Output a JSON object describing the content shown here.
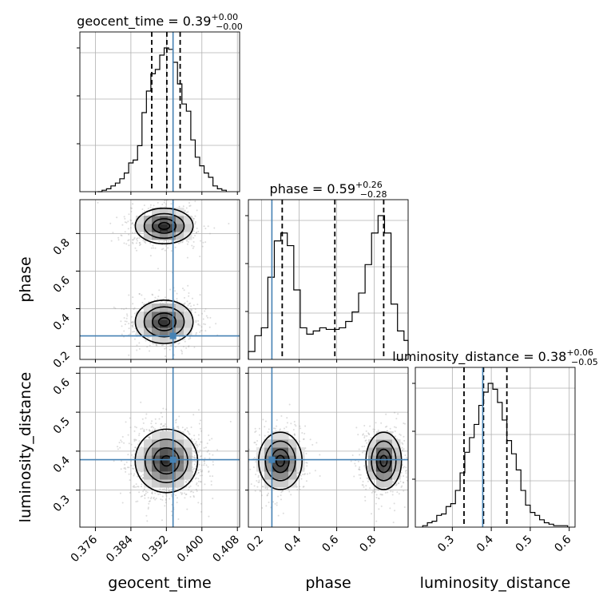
{
  "chart_data": {
    "type": "corner",
    "parameters": [
      "geocent_time",
      "phase",
      "luminosity_distance"
    ],
    "truth": {
      "geocent_time": 0.3935,
      "phase": 0.255,
      "luminosity_distance": 0.378
    },
    "titles": {
      "geocent_time": {
        "name": "geocent_time",
        "median": "0.39",
        "plus": "+0.00",
        "minus": "−0.00"
      },
      "phase": {
        "name": "phase",
        "median": "0.59",
        "plus": "+0.26",
        "minus": "−0.28"
      },
      "luminosity_distance": {
        "name": "luminosity_distance",
        "median": "0.38",
        "plus": "+0.06",
        "minus": "−0.05"
      }
    },
    "axes": {
      "geocent_time": {
        "range": [
          0.3725,
          0.4085
        ],
        "ticks": [
          "0.376",
          "0.384",
          "0.392",
          "0.400",
          "0.408"
        ],
        "tick_values": [
          0.376,
          0.384,
          0.392,
          0.4,
          0.408
        ],
        "label": "geocent_time"
      },
      "phase": {
        "range": [
          0.13,
          0.98
        ],
        "ticks": [
          "0.2",
          "0.4",
          "0.6",
          "0.8"
        ],
        "tick_values": [
          0.2,
          0.4,
          0.6,
          0.8
        ],
        "label": "phase"
      },
      "luminosity_distance": {
        "range": [
          0.205,
          0.615
        ],
        "ticks": [
          "0.3",
          "0.4",
          "0.5",
          "0.6"
        ],
        "tick_values": [
          0.3,
          0.4,
          0.5,
          0.6
        ],
        "label": "luminosity_distance"
      }
    },
    "quantiles": {
      "geocent_time": [
        0.3887,
        0.3921,
        0.3951
      ],
      "phase": [
        0.31,
        0.59,
        0.85
      ],
      "luminosity_distance": [
        0.33,
        0.38,
        0.44
      ]
    },
    "histograms": {
      "geocent_time": {
        "edges": [
          0.3765,
          0.3775,
          0.3785,
          0.3795,
          0.3805,
          0.3815,
          0.3825,
          0.3835,
          0.3845,
          0.3855,
          0.3865,
          0.3875,
          0.3885,
          0.3895,
          0.3905,
          0.3915,
          0.3925,
          0.3935,
          0.3945,
          0.3955,
          0.3965,
          0.3975,
          0.3985,
          0.3995,
          0.4005,
          0.4015,
          0.4025,
          0.4035,
          0.4045,
          0.4055
        ],
        "counts": [
          0,
          1,
          2,
          4,
          6,
          9,
          13,
          20,
          22,
          32,
          55,
          70,
          82,
          85,
          95,
          100,
          99,
          90,
          75,
          61,
          56,
          36,
          24,
          18,
          13,
          10,
          4,
          2,
          1
        ]
      },
      "phase": {
        "edges": [
          0.13,
          0.1645,
          0.199,
          0.2335,
          0.268,
          0.3025,
          0.337,
          0.3715,
          0.406,
          0.4405,
          0.475,
          0.5095,
          0.544,
          0.5785,
          0.613,
          0.6475,
          0.682,
          0.7165,
          0.751,
          0.7855,
          0.82,
          0.8545,
          0.889,
          0.9235,
          0.958,
          0.98
        ],
        "counts": [
          5,
          15,
          20,
          52,
          75,
          80,
          72,
          44,
          20,
          16,
          18,
          20,
          19,
          19,
          20,
          24,
          30,
          42,
          60,
          80,
          91,
          80,
          35,
          18,
          12
        ]
      },
      "luminosity_distance": {
        "edges": [
          0.224,
          0.236,
          0.248,
          0.26,
          0.272,
          0.284,
          0.296,
          0.308,
          0.32,
          0.332,
          0.344,
          0.356,
          0.368,
          0.38,
          0.392,
          0.404,
          0.416,
          0.428,
          0.44,
          0.452,
          0.464,
          0.476,
          0.488,
          0.5,
          0.512,
          0.524,
          0.536,
          0.548,
          0.56,
          0.572,
          0.584,
          0.596
        ],
        "counts": [
          1,
          3,
          4,
          8,
          9,
          14,
          16,
          25,
          37,
          51,
          61,
          70,
          83,
          92,
          98,
          94,
          85,
          73,
          59,
          50,
          39,
          25,
          15,
          10,
          8,
          5,
          3,
          2,
          1,
          1,
          1
        ]
      }
    },
    "pairs": [
      {
        "x": "geocent_time",
        "y": "phase",
        "modes": [
          {
            "cx": 0.3915,
            "cy": 0.84,
            "sx": 0.0031,
            "sy": 0.045,
            "w": 1.0
          },
          {
            "cx": 0.3915,
            "cy": 0.33,
            "sx": 0.0031,
            "sy": 0.055,
            "w": 0.95
          }
        ]
      },
      {
        "x": "geocent_time",
        "y": "luminosity_distance",
        "modes": [
          {
            "cx": 0.392,
            "cy": 0.375,
            "sx": 0.0032,
            "sy": 0.037,
            "w": 1.0
          }
        ]
      },
      {
        "x": "phase",
        "y": "luminosity_distance",
        "modes": [
          {
            "cx": 0.3,
            "cy": 0.375,
            "sx": 0.055,
            "sy": 0.035,
            "w": 1.0
          },
          {
            "cx": 0.85,
            "cy": 0.375,
            "sx": 0.045,
            "sy": 0.035,
            "w": 1.0
          }
        ]
      }
    ],
    "colors": {
      "truth": "#4682b4",
      "grid": "#b0b0b0",
      "contour": "#000000",
      "hist": "#000000",
      "scatter": "#9a9a9a"
    },
    "grid": true
  }
}
